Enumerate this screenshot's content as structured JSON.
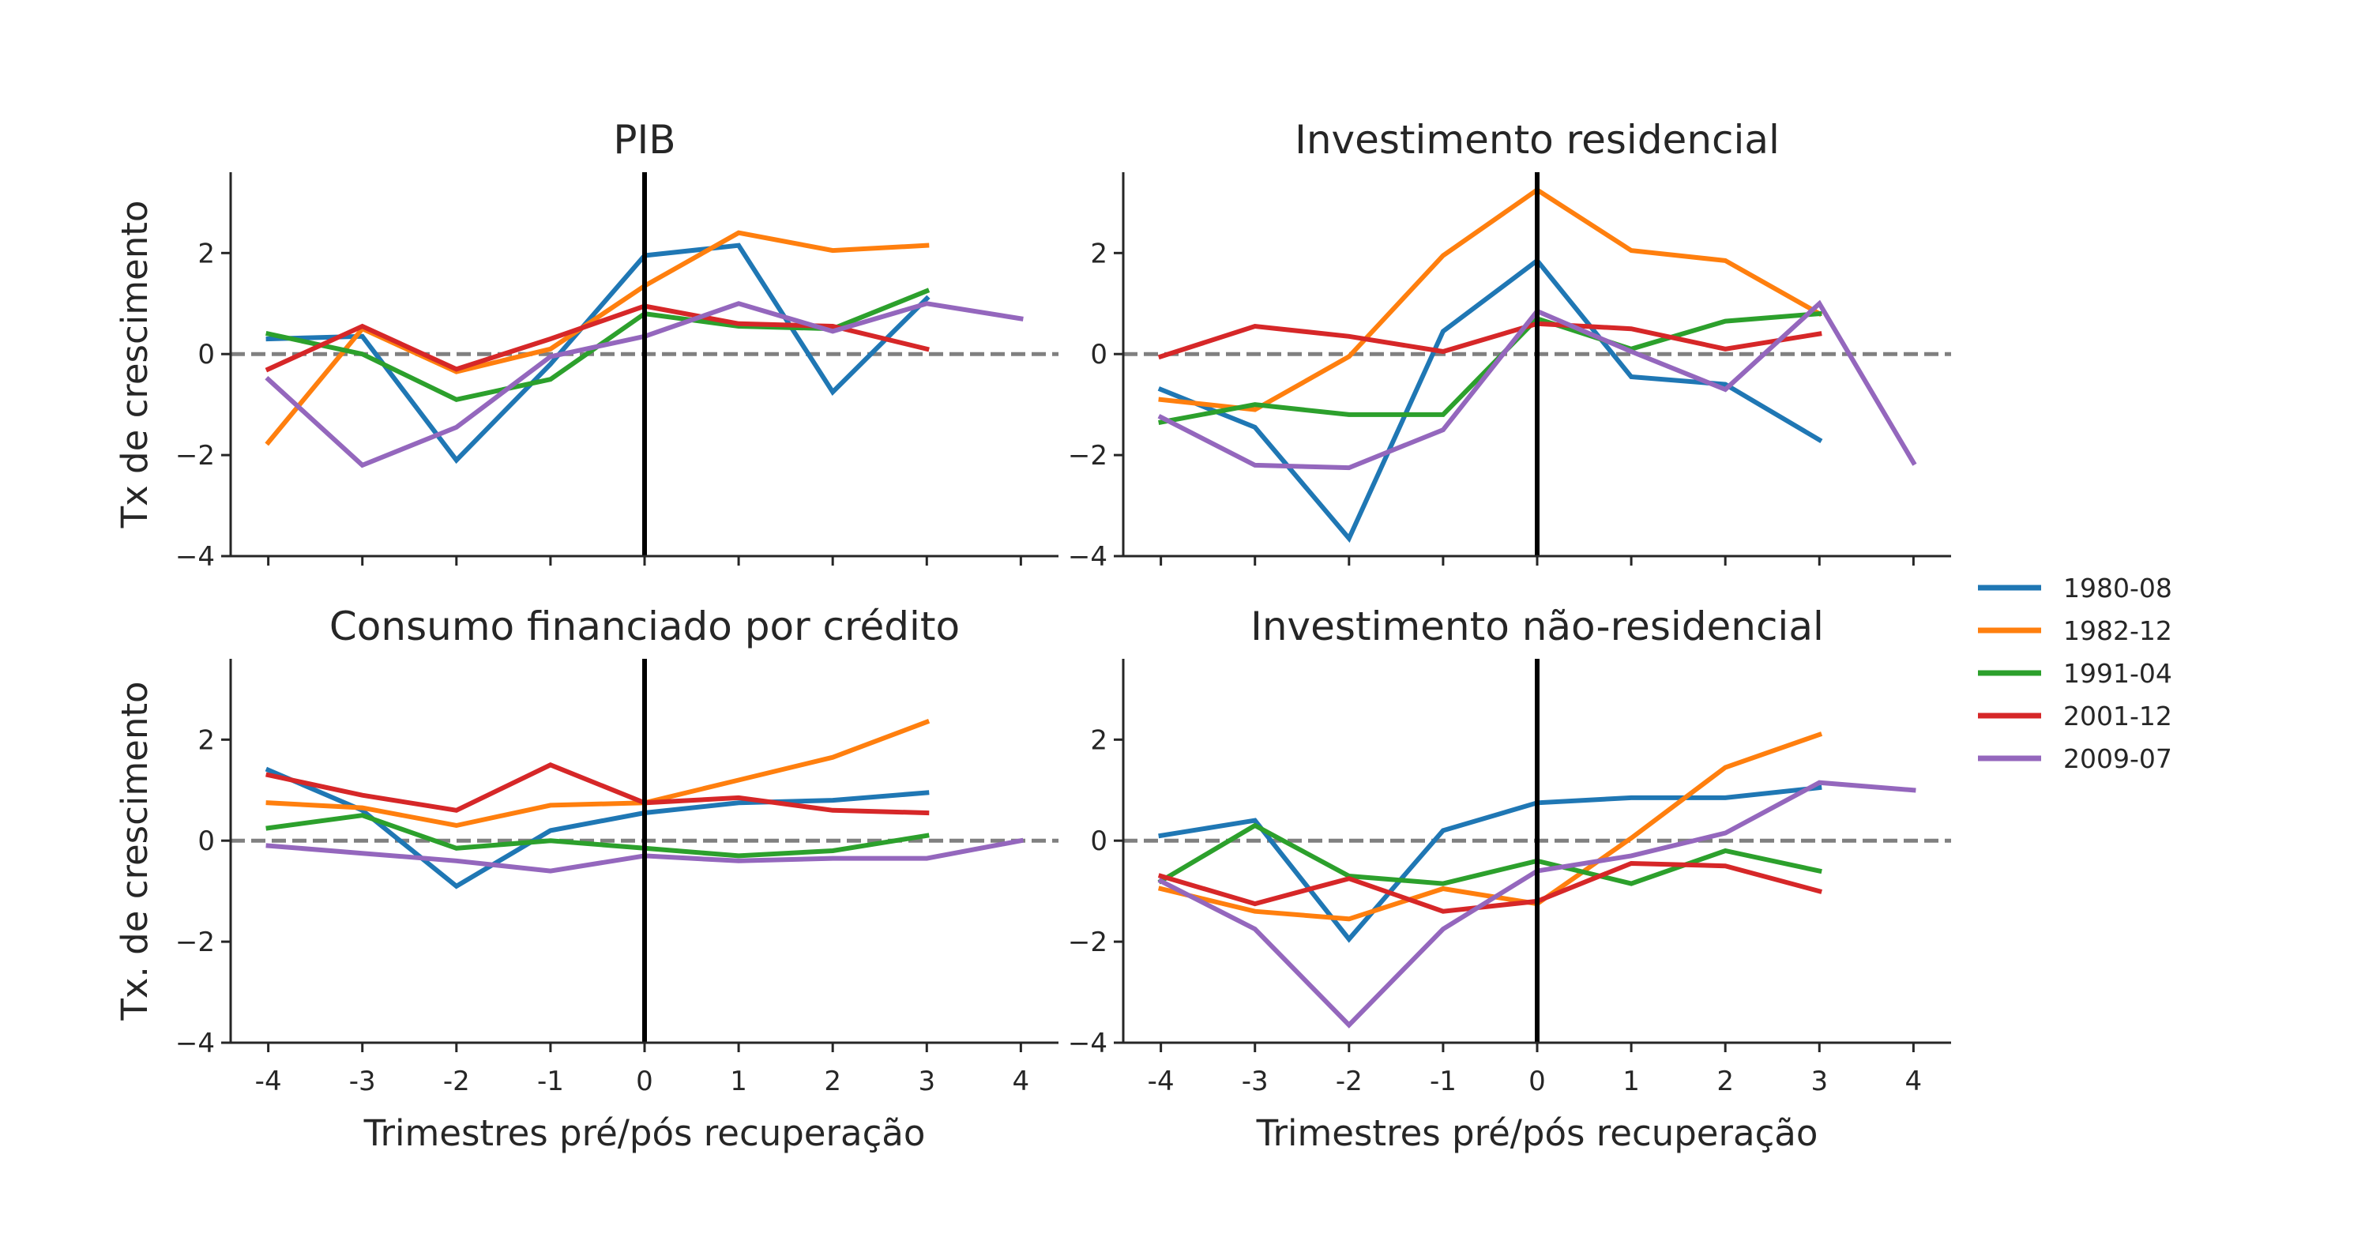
{
  "colors": {
    "1980-08": "#1f77b4",
    "1982-12": "#ff7f0e",
    "1991-04": "#2ca02c",
    "2001-12": "#d62728",
    "2009-07": "#9467bd",
    "zero_line": "#808080",
    "recovery_line": "#000000"
  },
  "chart_data": [
    {
      "type": "line",
      "title": "PIB",
      "xlabel": "",
      "ylabel": "Tx de crescimento",
      "x": [
        -4,
        -3,
        -2,
        -1,
        0,
        1,
        2,
        3,
        4
      ],
      "xlim": [
        -4.4,
        4.4
      ],
      "ylim": [
        -4,
        3.6
      ],
      "yticks": [
        -4,
        -2,
        0,
        2
      ],
      "reference_lines": {
        "horizontal_dashed": 0,
        "vertical_solid": 0
      },
      "series": [
        {
          "name": "1980-08",
          "values": [
            0.3,
            0.35,
            -2.1,
            -0.2,
            1.95,
            2.15,
            -0.75,
            1.1,
            null
          ]
        },
        {
          "name": "1982-12",
          "values": [
            -1.75,
            0.5,
            -0.35,
            0.1,
            1.35,
            2.4,
            2.05,
            2.15,
            null
          ]
        },
        {
          "name": "1991-04",
          "values": [
            0.4,
            0.0,
            -0.9,
            -0.5,
            0.8,
            0.55,
            0.5,
            1.25,
            null
          ]
        },
        {
          "name": "2001-12",
          "values": [
            -0.3,
            0.55,
            -0.3,
            0.3,
            0.95,
            0.6,
            0.55,
            0.1,
            null
          ]
        },
        {
          "name": "2009-07",
          "values": [
            -0.5,
            -2.2,
            -1.45,
            -0.05,
            0.35,
            1.0,
            0.45,
            1.0,
            0.7
          ]
        }
      ]
    },
    {
      "type": "line",
      "title": "Investimento residencial",
      "xlabel": "",
      "ylabel": "",
      "x": [
        -4,
        -3,
        -2,
        -1,
        0,
        1,
        2,
        3,
        4
      ],
      "xlim": [
        -4.4,
        4.4
      ],
      "ylim": [
        -4,
        3.6
      ],
      "yticks": [
        -4,
        -2,
        0,
        2
      ],
      "reference_lines": {
        "horizontal_dashed": 0,
        "vertical_solid": 0
      },
      "series": [
        {
          "name": "1980-08",
          "values": [
            -0.7,
            -1.45,
            -3.65,
            0.45,
            1.85,
            -0.45,
            -0.6,
            -1.7,
            null
          ]
        },
        {
          "name": "1982-12",
          "values": [
            -0.9,
            -1.1,
            -0.05,
            1.95,
            3.25,
            2.05,
            1.85,
            0.8,
            null
          ]
        },
        {
          "name": "1991-04",
          "values": [
            -1.35,
            -1.0,
            -1.2,
            -1.2,
            0.7,
            0.1,
            0.65,
            0.8,
            null
          ]
        },
        {
          "name": "2001-12",
          "values": [
            -0.05,
            0.55,
            0.35,
            0.05,
            0.6,
            0.5,
            0.1,
            0.4,
            null
          ]
        },
        {
          "name": "2009-07",
          "values": [
            -1.25,
            -2.2,
            -2.25,
            -1.5,
            0.85,
            0.05,
            -0.7,
            1.0,
            -2.15
          ]
        }
      ]
    },
    {
      "type": "line",
      "title": "Consumo financiado por crédito",
      "xlabel": "Trimestres pré/pós recuperação",
      "ylabel": "Tx. de crescimento",
      "x": [
        -4,
        -3,
        -2,
        -1,
        0,
        1,
        2,
        3,
        4
      ],
      "xlim": [
        -4.4,
        4.4
      ],
      "ylim": [
        -4,
        3.6
      ],
      "yticks": [
        -4,
        -2,
        0,
        2
      ],
      "xticks": [
        "-4",
        "-3",
        "-2",
        "-1",
        "0",
        "1",
        "2",
        "3",
        "4"
      ],
      "reference_lines": {
        "horizontal_dashed": 0,
        "vertical_solid": 0
      },
      "series": [
        {
          "name": "1980-08",
          "values": [
            1.4,
            0.6,
            -0.9,
            0.2,
            0.55,
            0.75,
            0.8,
            0.95,
            null
          ]
        },
        {
          "name": "1982-12",
          "values": [
            0.75,
            0.65,
            0.3,
            0.7,
            0.75,
            1.2,
            1.65,
            2.35,
            null
          ]
        },
        {
          "name": "1991-04",
          "values": [
            0.25,
            0.5,
            -0.15,
            0.0,
            -0.15,
            -0.3,
            -0.2,
            0.1,
            null
          ]
        },
        {
          "name": "2001-12",
          "values": [
            1.3,
            0.9,
            0.6,
            1.5,
            0.75,
            0.85,
            0.6,
            0.55,
            null
          ]
        },
        {
          "name": "2009-07",
          "values": [
            -0.1,
            -0.25,
            -0.4,
            -0.6,
            -0.3,
            -0.4,
            -0.35,
            -0.35,
            0.0
          ]
        }
      ]
    },
    {
      "type": "line",
      "title": "Investimento não-residencial",
      "xlabel": "Trimestres pré/pós recuperação",
      "ylabel": "",
      "x": [
        -4,
        -3,
        -2,
        -1,
        0,
        1,
        2,
        3,
        4
      ],
      "xlim": [
        -4.4,
        4.4
      ],
      "ylim": [
        -4,
        3.6
      ],
      "yticks": [
        -4,
        -2,
        0,
        2
      ],
      "xticks": [
        "-4",
        "-3",
        "-2",
        "-1",
        "0",
        "1",
        "2",
        "3",
        "4"
      ],
      "reference_lines": {
        "horizontal_dashed": 0,
        "vertical_solid": 0
      },
      "series": [
        {
          "name": "1980-08",
          "values": [
            0.1,
            0.4,
            -1.95,
            0.2,
            0.75,
            0.85,
            0.85,
            1.05,
            null
          ]
        },
        {
          "name": "1982-12",
          "values": [
            -0.95,
            -1.4,
            -1.55,
            -0.95,
            -1.25,
            0.05,
            1.45,
            2.1,
            null
          ]
        },
        {
          "name": "1991-04",
          "values": [
            -0.8,
            0.3,
            -0.7,
            -0.85,
            -0.4,
            -0.85,
            -0.2,
            -0.6,
            null
          ]
        },
        {
          "name": "2001-12",
          "values": [
            -0.7,
            -1.25,
            -0.75,
            -1.4,
            -1.2,
            -0.45,
            -0.5,
            -1.0,
            null
          ]
        },
        {
          "name": "2009-07",
          "values": [
            -0.8,
            -1.75,
            -3.65,
            -1.75,
            -0.6,
            -0.3,
            0.15,
            1.15,
            1.0
          ]
        }
      ]
    }
  ],
  "legend": {
    "placement": "right",
    "entries": [
      "1980-08",
      "1982-12",
      "1991-04",
      "2001-12",
      "2009-07"
    ]
  }
}
